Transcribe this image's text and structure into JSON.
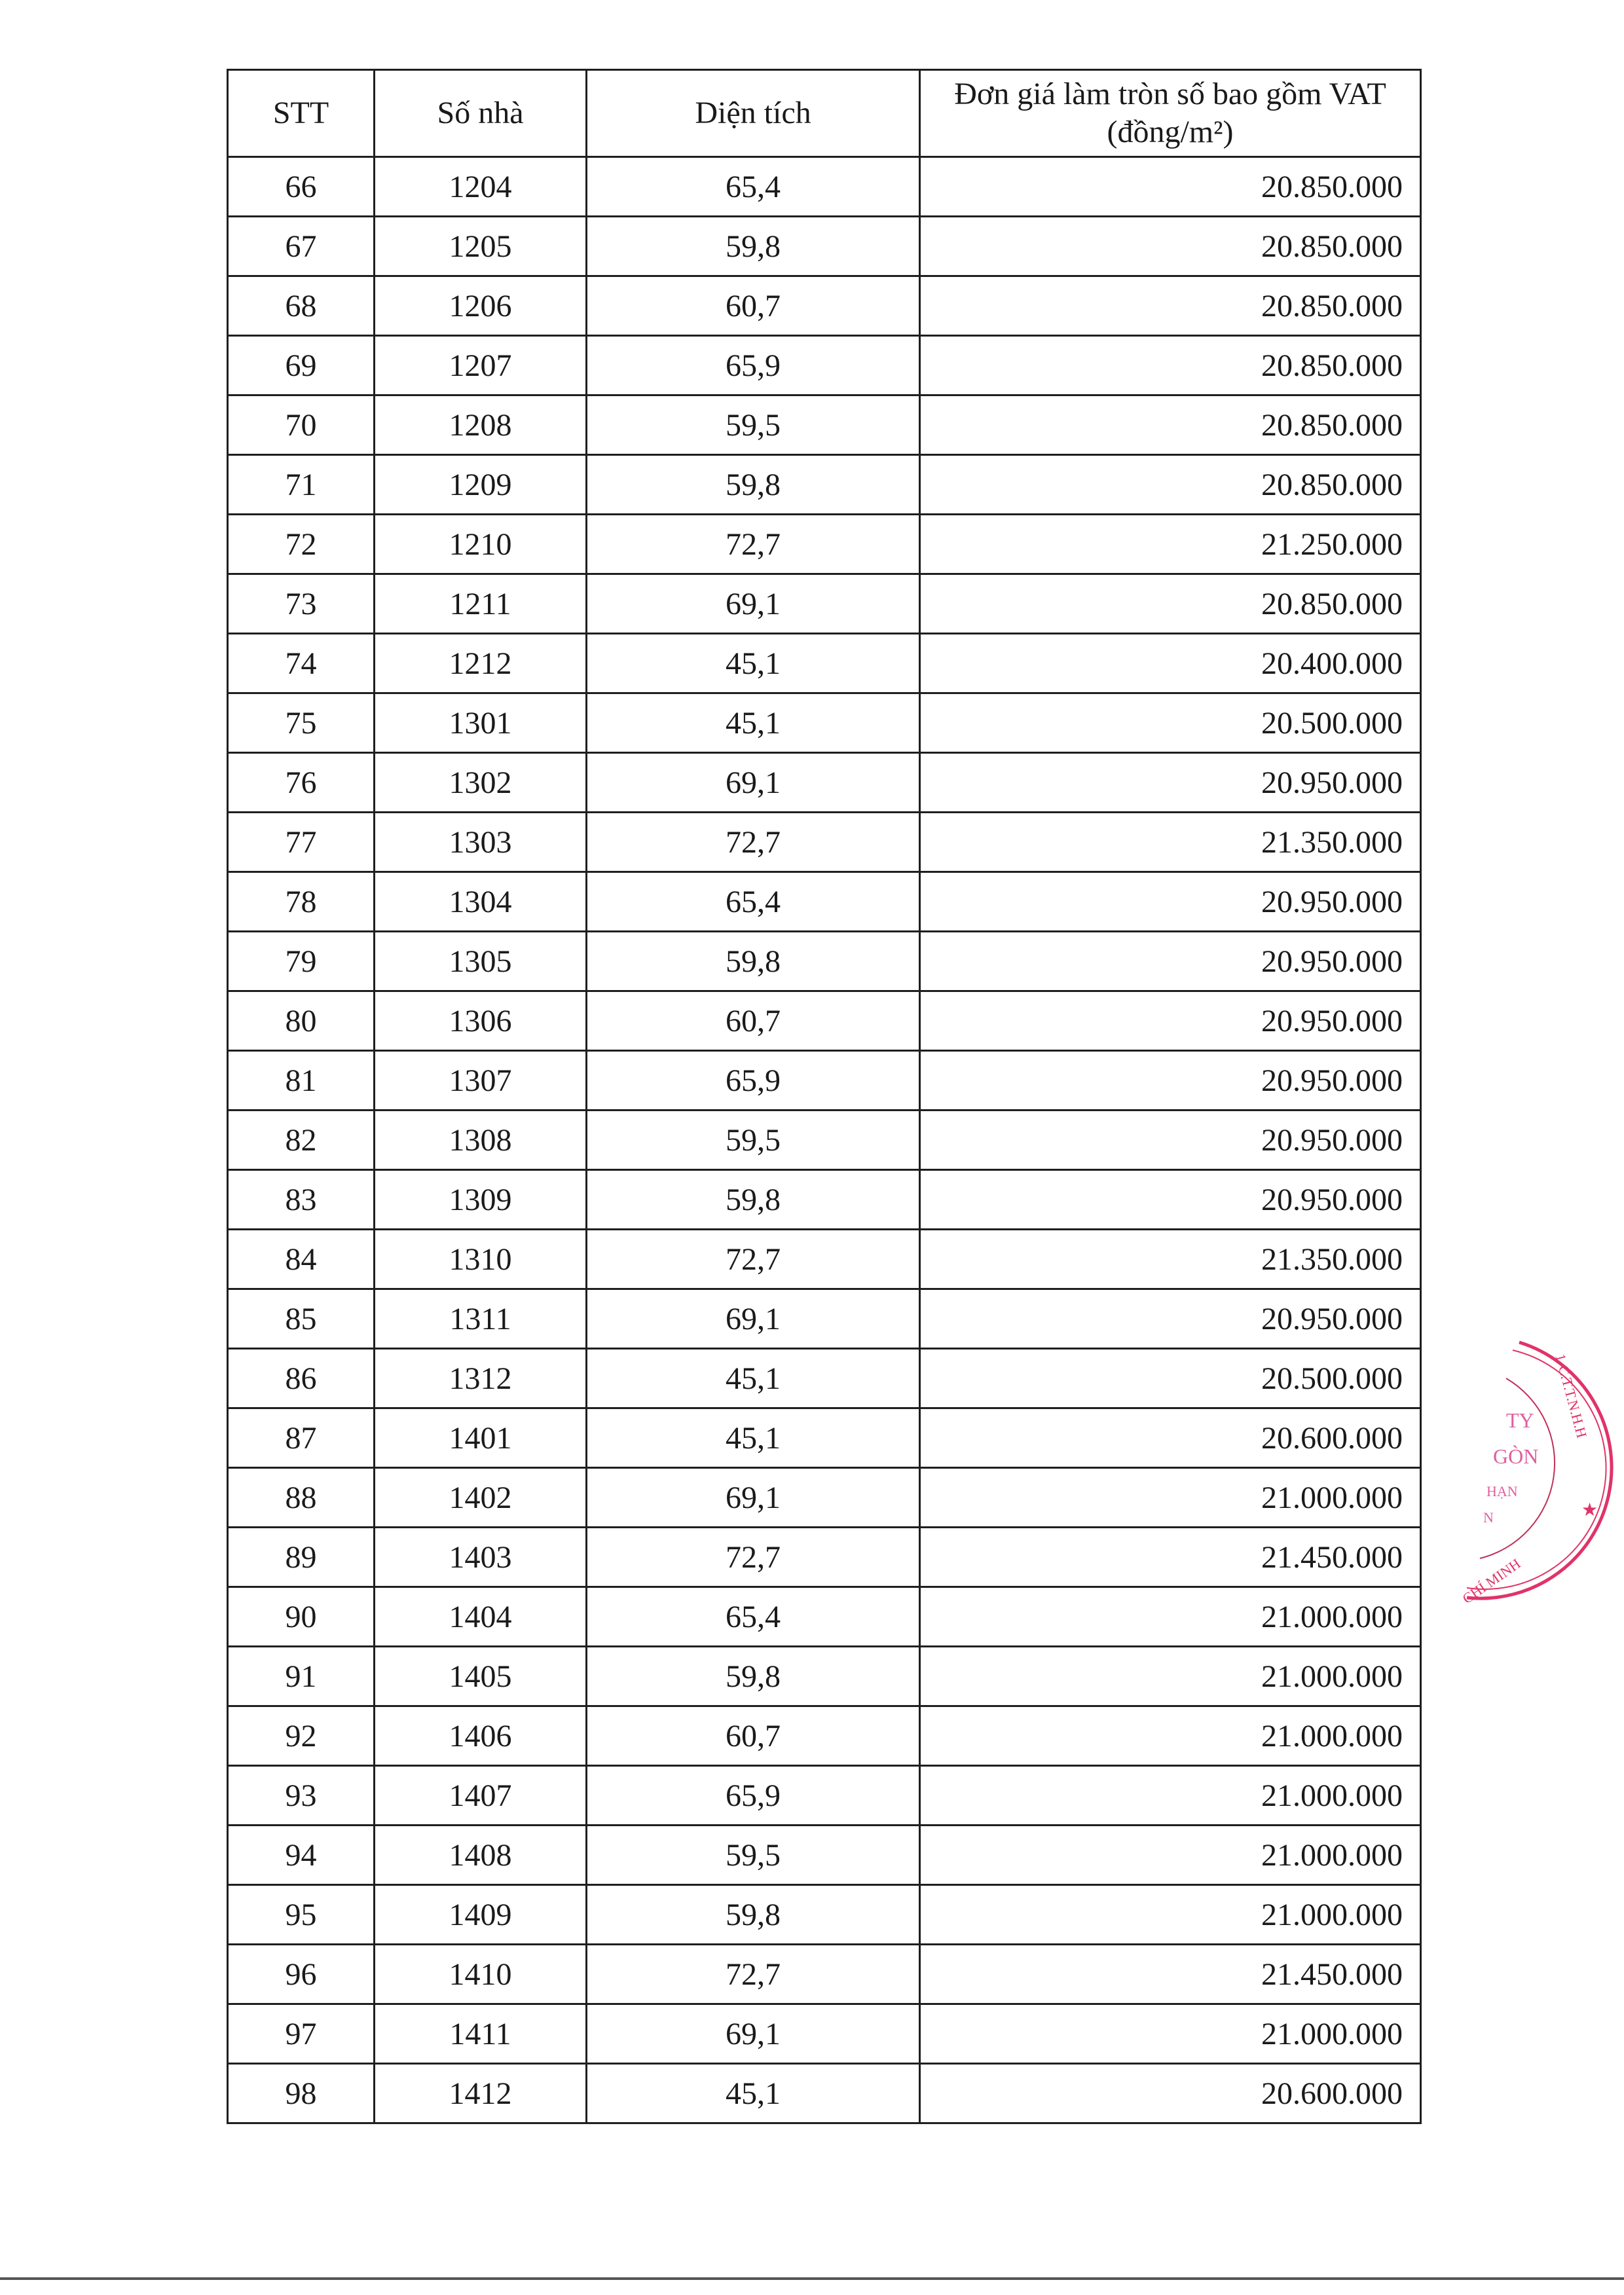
{
  "table": {
    "headers": [
      "STT",
      "Số nhà",
      "Diện tích",
      "Đơn giá làm tròn số bao gồm VAT (đồng/m²)"
    ],
    "rows": [
      [
        "66",
        "1204",
        "65,4",
        "20.850.000"
      ],
      [
        "67",
        "1205",
        "59,8",
        "20.850.000"
      ],
      [
        "68",
        "1206",
        "60,7",
        "20.850.000"
      ],
      [
        "69",
        "1207",
        "65,9",
        "20.850.000"
      ],
      [
        "70",
        "1208",
        "59,5",
        "20.850.000"
      ],
      [
        "71",
        "1209",
        "59,8",
        "20.850.000"
      ],
      [
        "72",
        "1210",
        "72,7",
        "21.250.000"
      ],
      [
        "73",
        "1211",
        "69,1",
        "20.850.000"
      ],
      [
        "74",
        "1212",
        "45,1",
        "20.400.000"
      ],
      [
        "75",
        "1301",
        "45,1",
        "20.500.000"
      ],
      [
        "76",
        "1302",
        "69,1",
        "20.950.000"
      ],
      [
        "77",
        "1303",
        "72,7",
        "21.350.000"
      ],
      [
        "78",
        "1304",
        "65,4",
        "20.950.000"
      ],
      [
        "79",
        "1305",
        "59,8",
        "20.950.000"
      ],
      [
        "80",
        "1306",
        "60,7",
        "20.950.000"
      ],
      [
        "81",
        "1307",
        "65,9",
        "20.950.000"
      ],
      [
        "82",
        "1308",
        "59,5",
        "20.950.000"
      ],
      [
        "83",
        "1309",
        "59,8",
        "20.950.000"
      ],
      [
        "84",
        "1310",
        "72,7",
        "21.350.000"
      ],
      [
        "85",
        "1311",
        "69,1",
        "20.950.000"
      ],
      [
        "86",
        "1312",
        "45,1",
        "20.500.000"
      ],
      [
        "87",
        "1401",
        "45,1",
        "20.600.000"
      ],
      [
        "88",
        "1402",
        "69,1",
        "21.000.000"
      ],
      [
        "89",
        "1403",
        "72,7",
        "21.450.000"
      ],
      [
        "90",
        "1404",
        "65,4",
        "21.000.000"
      ],
      [
        "91",
        "1405",
        "59,8",
        "21.000.000"
      ],
      [
        "92",
        "1406",
        "60,7",
        "21.000.000"
      ],
      [
        "93",
        "1407",
        "65,9",
        "21.000.000"
      ],
      [
        "94",
        "1408",
        "59,5",
        "21.000.000"
      ],
      [
        "95",
        "1409",
        "59,8",
        "21.000.000"
      ],
      [
        "96",
        "1410",
        "72,7",
        "21.450.000"
      ],
      [
        "97",
        "1411",
        "69,1",
        "21.000.000"
      ],
      [
        "98",
        "1412",
        "45,1",
        "20.600.000"
      ]
    ]
  },
  "stamp": {
    "color": "#e0336a",
    "text_outer": "1-C.T.T.N.H.H",
    "text_bottom": "CHÍ MINH",
    "text_inner": [
      "TY",
      "GÒN",
      "HẠN",
      "N"
    ]
  }
}
